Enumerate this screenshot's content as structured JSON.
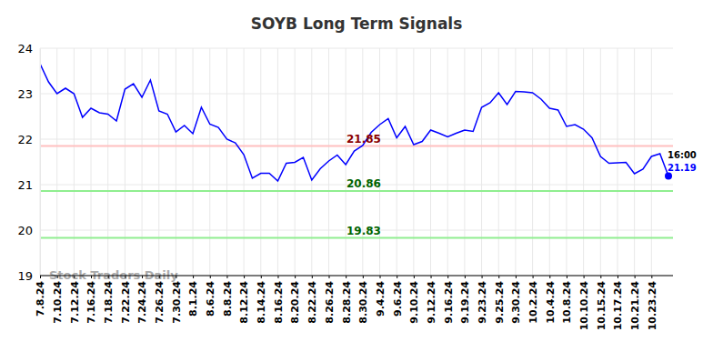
{
  "chart_data": {
    "type": "line",
    "title": "SOYB Long Term Signals",
    "categories": [
      "7.8.24",
      null,
      "7.10.24",
      null,
      "7.12.24",
      null,
      "7.16.24",
      null,
      "7.18.24",
      null,
      "7.22.24",
      null,
      "7.24.24",
      null,
      "7.26.24",
      null,
      "7.30.24",
      null,
      "8.1.24",
      null,
      "8.6.24",
      null,
      "8.8.24",
      null,
      "8.12.24",
      null,
      "8.14.24",
      null,
      "8.16.24",
      null,
      "8.20.24",
      null,
      "8.22.24",
      null,
      "8.26.24",
      null,
      "8.28.24",
      null,
      "8.30.24",
      null,
      "9.4.24",
      null,
      "9.6.24",
      null,
      "9.10.24",
      null,
      "9.12.24",
      null,
      "9.16.24",
      null,
      "9.19.24",
      null,
      "9.23.24",
      null,
      "9.25.24",
      null,
      "9.30.24",
      null,
      "10.2.24",
      null,
      "10.4.24",
      null,
      "10.8.24",
      null,
      "10.10.24",
      null,
      "10.15.24",
      null,
      "10.17.24",
      null,
      "10.21.24",
      null,
      "10.23.24",
      null,
      null
    ],
    "values": [
      23.66,
      23.26,
      23.0,
      23.12,
      23.0,
      22.48,
      22.68,
      22.58,
      22.55,
      22.4,
      23.1,
      23.22,
      22.92,
      23.3,
      22.62,
      22.55,
      22.16,
      22.3,
      22.12,
      22.7,
      22.33,
      22.26,
      22.0,
      21.92,
      21.66,
      21.14,
      21.25,
      21.25,
      21.08,
      21.47,
      21.49,
      21.6,
      21.1,
      21.35,
      21.52,
      21.65,
      21.44,
      21.74,
      21.86,
      22.15,
      22.32,
      22.45,
      22.03,
      22.28,
      21.88,
      21.95,
      22.2,
      22.13,
      22.05,
      22.13,
      22.2,
      22.17,
      22.7,
      22.8,
      23.02,
      22.76,
      23.05,
      23.04,
      23.02,
      22.88,
      22.68,
      22.64,
      22.28,
      22.32,
      22.22,
      22.03,
      21.62,
      21.47,
      21.48,
      21.49,
      21.24,
      21.34,
      21.62,
      21.68,
      21.19
    ],
    "color": "#0000ff",
    "ylim": [
      19,
      24
    ],
    "yticks": [
      19,
      20,
      21,
      22,
      23,
      24
    ],
    "grid": true,
    "reference_lines": [
      {
        "value": 21.85,
        "color": "#ffc0c0",
        "label_color": "#8b0000"
      },
      {
        "value": 20.86,
        "color": "#90ee90",
        "label_color": "#006400"
      },
      {
        "value": 19.83,
        "color": "#90ee90",
        "label_color": "#006400"
      }
    ],
    "annotation": "16:00",
    "watermark": "Stock Traders Daily"
  }
}
